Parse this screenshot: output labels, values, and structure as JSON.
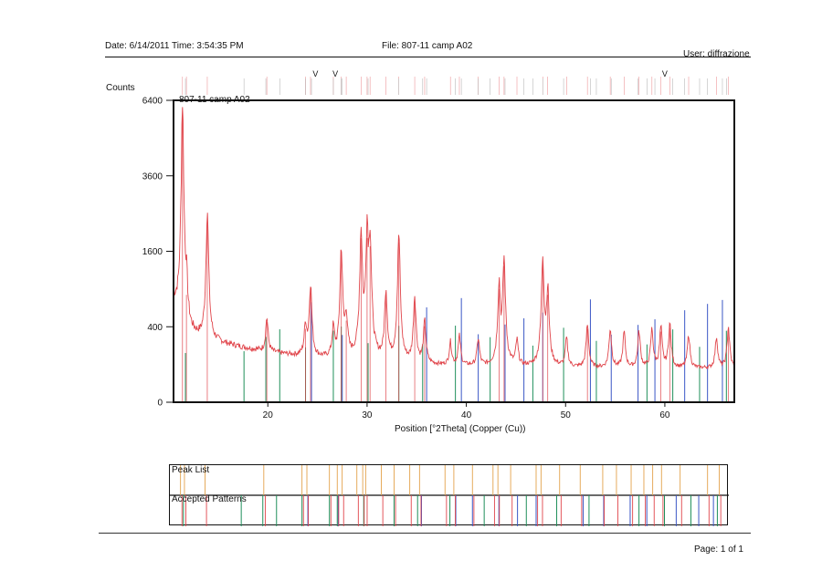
{
  "header": {
    "date": "Date: 6/14/2011 Time: 3:54:35 PM",
    "file": "File: 807-11 camp A02",
    "user": "User: diffrazione"
  },
  "footer": {
    "page": "Page: 1 of 1"
  },
  "colors": {
    "pattern": "#e0444a",
    "ref_blue": "#3a56c6",
    "ref_green": "#1f8f5a",
    "ref_orange": "#e3a24b",
    "frame": "#111111"
  },
  "chart_data": {
    "type": "line",
    "title": "807-11 camp A02",
    "xlabel": "Position [°2Theta] (Copper (Cu))",
    "ylabel": "Counts",
    "xlim": [
      10.5,
      67
    ],
    "y_scale": "sqrt",
    "ylim": [
      0,
      6400
    ],
    "x_ticks": [
      20,
      30,
      40,
      50,
      60
    ],
    "y_ticks": [
      0,
      400,
      1600,
      3600,
      6400
    ],
    "background_counts": 80,
    "peaks": [
      {
        "x": 11.4,
        "y": 6400
      },
      {
        "x": 11.8,
        "y": 900
      },
      {
        "x": 13.9,
        "y": 2600
      },
      {
        "x": 19.9,
        "y": 500
      },
      {
        "x": 23.8,
        "y": 420
      },
      {
        "x": 24.3,
        "y": 1000
      },
      {
        "x": 26.6,
        "y": 380
      },
      {
        "x": 27.4,
        "y": 1700
      },
      {
        "x": 27.9,
        "y": 520
      },
      {
        "x": 29.4,
        "y": 2100
      },
      {
        "x": 30.0,
        "y": 2100
      },
      {
        "x": 30.3,
        "y": 1900
      },
      {
        "x": 31.9,
        "y": 900
      },
      {
        "x": 33.2,
        "y": 2000
      },
      {
        "x": 34.8,
        "y": 800
      },
      {
        "x": 35.8,
        "y": 450
      },
      {
        "x": 38.4,
        "y": 250
      },
      {
        "x": 39.3,
        "y": 300
      },
      {
        "x": 41.2,
        "y": 280
      },
      {
        "x": 43.3,
        "y": 1000
      },
      {
        "x": 43.8,
        "y": 1450
      },
      {
        "x": 45.1,
        "y": 260
      },
      {
        "x": 47.7,
        "y": 1500
      },
      {
        "x": 48.2,
        "y": 900
      },
      {
        "x": 50.1,
        "y": 280
      },
      {
        "x": 52.2,
        "y": 420
      },
      {
        "x": 54.5,
        "y": 380
      },
      {
        "x": 55.9,
        "y": 340
      },
      {
        "x": 57.4,
        "y": 350
      },
      {
        "x": 58.7,
        "y": 370
      },
      {
        "x": 59.6,
        "y": 390
      },
      {
        "x": 60.5,
        "y": 430
      },
      {
        "x": 62.4,
        "y": 320
      },
      {
        "x": 65.2,
        "y": 300
      },
      {
        "x": 66.4,
        "y": 400
      }
    ],
    "reference_lines": {
      "blue": [
        24.4,
        27.5,
        36.0,
        39.5,
        41.2,
        43.9,
        45.8,
        47.7,
        52.5,
        54.6,
        57.3,
        59.0,
        62.0,
        64.3,
        65.8
      ],
      "green": [
        11.7,
        17.6,
        19.8,
        21.2,
        23.8,
        26.6,
        27.4,
        30.1,
        33.2,
        35.6,
        38.9,
        42.4,
        46.7,
        49.8,
        53.1,
        58.2,
        60.8,
        63.5,
        66.2
      ]
    },
    "marker_positions": [
      24.8,
      26.8,
      60.0
    ],
    "marker_glyph": "V"
  }
}
